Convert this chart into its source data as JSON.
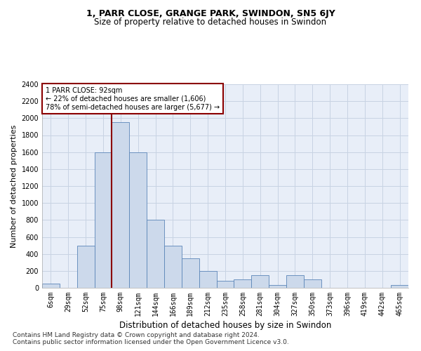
{
  "title": "1, PARR CLOSE, GRANGE PARK, SWINDON, SN5 6JY",
  "subtitle": "Size of property relative to detached houses in Swindon",
  "xlabel": "Distribution of detached houses by size in Swindon",
  "ylabel": "Number of detached properties",
  "footnote1": "Contains HM Land Registry data © Crown copyright and database right 2024.",
  "footnote2": "Contains public sector information licensed under the Open Government Licence v3.0.",
  "annotation_title": "1 PARR CLOSE: 92sqm",
  "annotation_line1": "← 22% of detached houses are smaller (1,606)",
  "annotation_line2": "78% of semi-detached houses are larger (5,677) →",
  "bar_labels": [
    "6sqm",
    "29sqm",
    "52sqm",
    "75sqm",
    "98sqm",
    "121sqm",
    "144sqm",
    "166sqm",
    "189sqm",
    "212sqm",
    "235sqm",
    "258sqm",
    "281sqm",
    "304sqm",
    "327sqm",
    "350sqm",
    "373sqm",
    "396sqm",
    "419sqm",
    "442sqm",
    "465sqm"
  ],
  "bar_values": [
    50,
    0,
    500,
    1600,
    1950,
    1600,
    800,
    500,
    350,
    200,
    80,
    100,
    150,
    30,
    150,
    100,
    0,
    0,
    0,
    0,
    30
  ],
  "bar_color": "#ccd9eb",
  "bar_edge_color": "#5b85b8",
  "grid_color": "#c8d3e3",
  "bg_color": "#e8eef8",
  "vline_x": 4.0,
  "vline_color": "#8b0000",
  "ylim": [
    0,
    2400
  ],
  "yticks": [
    0,
    200,
    400,
    600,
    800,
    1000,
    1200,
    1400,
    1600,
    1800,
    2000,
    2200,
    2400
  ],
  "annotation_box_color": "#ffffff",
  "annotation_box_edge": "#8b0000",
  "title_fontsize": 9,
  "subtitle_fontsize": 8.5,
  "tick_fontsize": 7,
  "ylabel_fontsize": 8,
  "xlabel_fontsize": 8.5
}
